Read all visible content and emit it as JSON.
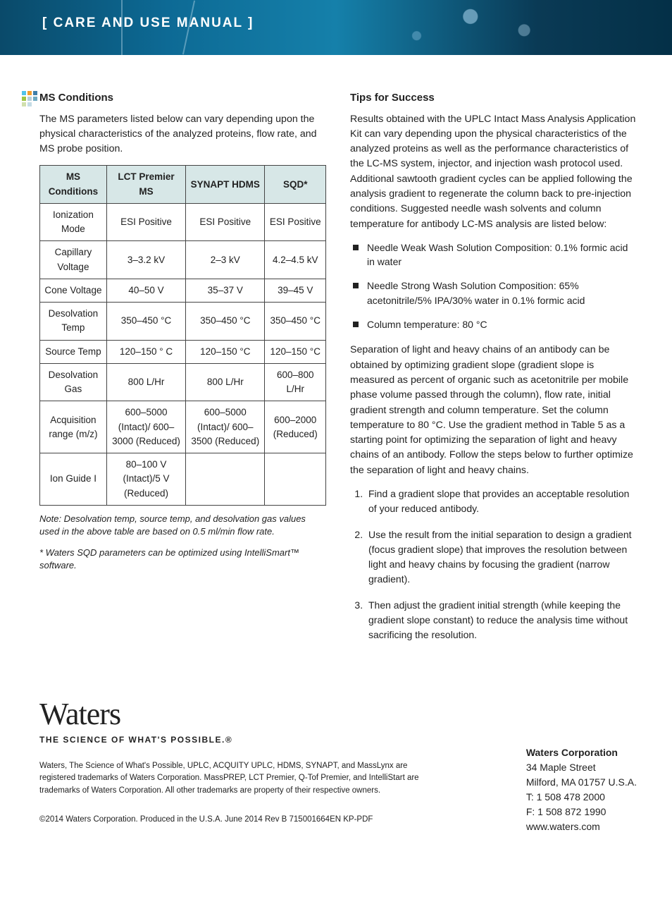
{
  "header": {
    "title": "[ CARE AND USE MANUAL ]"
  },
  "decor_colors": [
    "#52c3e9",
    "#f29e2e",
    "#3f7ea8",
    "#9fc544",
    "#b8cfd9",
    "#6faac2",
    "#d1e0ae",
    "#c4dbe5"
  ],
  "left": {
    "heading": "MS Conditions",
    "intro": "The MS parameters listed below can vary depending upon the physical characteristics of the analyzed proteins, flow rate, and MS probe position.",
    "table": {
      "headers": [
        "MS Conditions",
        "LCT Premier MS",
        "SYNAPT HDMS",
        "SQD*"
      ],
      "rows": [
        [
          "Ionization Mode",
          "ESI Positive",
          "ESI Positive",
          "ESI Positive"
        ],
        [
          "Capillary Voltage",
          "3–3.2 kV",
          "2–3 kV",
          "4.2–4.5 kV"
        ],
        [
          "Cone Voltage",
          "40–50 V",
          "35–37 V",
          "39–45 V"
        ],
        [
          "Desolvation Temp",
          "350–450 °C",
          "350–450 °C",
          "350–450 °C"
        ],
        [
          "Source Temp",
          "120–150 ° C",
          "120–150 °C",
          "120–150 °C"
        ],
        [
          "Desolvation Gas",
          "800 L/Hr",
          "800 L/Hr",
          "600–800 L/Hr"
        ],
        [
          "Acquisition range (m/z)",
          "600–5000 (Intact)/ 600–3000 (Reduced)",
          "600–5000 (Intact)/ 600–3500 (Reduced)",
          "600–2000 (Reduced)"
        ],
        [
          "Ion Guide I",
          "80–100 V (Intact)/5 V (Reduced)",
          "",
          ""
        ]
      ]
    },
    "note1": "Note: Desolvation temp, source temp, and desolvation gas values used in the above table are based on 0.5 ml/min flow rate.",
    "note2": "* Waters SQD parameters can be optimized using IntelliSmart™ software."
  },
  "right": {
    "heading": "Tips for Success",
    "para1": "Results obtained with the UPLC Intact Mass Analysis Application Kit can vary depending upon the physical characteristics of the analyzed proteins as well as the performance characteristics of the LC-MS system, injector, and injection wash protocol used. Additional sawtooth gradient cycles can be applied following the analysis gradient to regenerate the column back to pre-injection conditions. Suggested needle wash solvents and column temperature for antibody LC-MS analysis are listed below:",
    "bullets": [
      "Needle Weak Wash Solution Composition: 0.1% formic acid in water",
      "Needle Strong Wash Solution Composition: 65% acetonitrile/5% IPA/30% water in 0.1% formic acid",
      "Column temperature: 80 °C"
    ],
    "para2": "Separation of light and heavy chains of an antibody can be obtained by optimizing gradient slope (gradient slope is measured as percent of organic such as acetonitrile per mobile phase volume passed through the column), flow rate, initial gradient strength and column temperature. Set the column temperature to 80 °C. Use the gradient method in Table 5 as a starting point for optimizing the separation of light and heavy chains of an antibody. Follow the steps below to further optimize the separation of light and heavy chains.",
    "steps": [
      "Find a gradient slope that provides an acceptable resolution of your reduced antibody.",
      "Use the result from the initial separation to design a gradient (focus gradient slope) that improves the resolution between light and heavy chains by focusing the gradient (narrow gradient).",
      "Then adjust the gradient initial strength (while keeping the gradient slope constant) to reduce the analysis time without sacrificing the resolution."
    ]
  },
  "footer": {
    "logo": "Waters",
    "tagline": "THE SCIENCE OF WHAT'S POSSIBLE.®",
    "legal": "Waters, The Science of What's Possible, UPLC, ACQUITY UPLC, HDMS, SYNAPT, and MassLynx are registered trademarks of Waters Corporation. MassPREP, LCT Premier, Q-Tof Premier, and IntelliStart are trademarks of Waters Corporation. All other trademarks are property of their respective owners.",
    "copyright": "©2014 Waters Corporation. Produced in the U.S.A.  June 2014  Rev B  715001664EN  KP-PDF",
    "address": {
      "company": "Waters Corporation",
      "line1": "34 Maple Street",
      "line2": "Milford, MA 01757 U.S.A.",
      "tel": "T: 1 508 478 2000",
      "fax": "F: 1 508 872 1990",
      "web": "www.waters.com"
    }
  }
}
